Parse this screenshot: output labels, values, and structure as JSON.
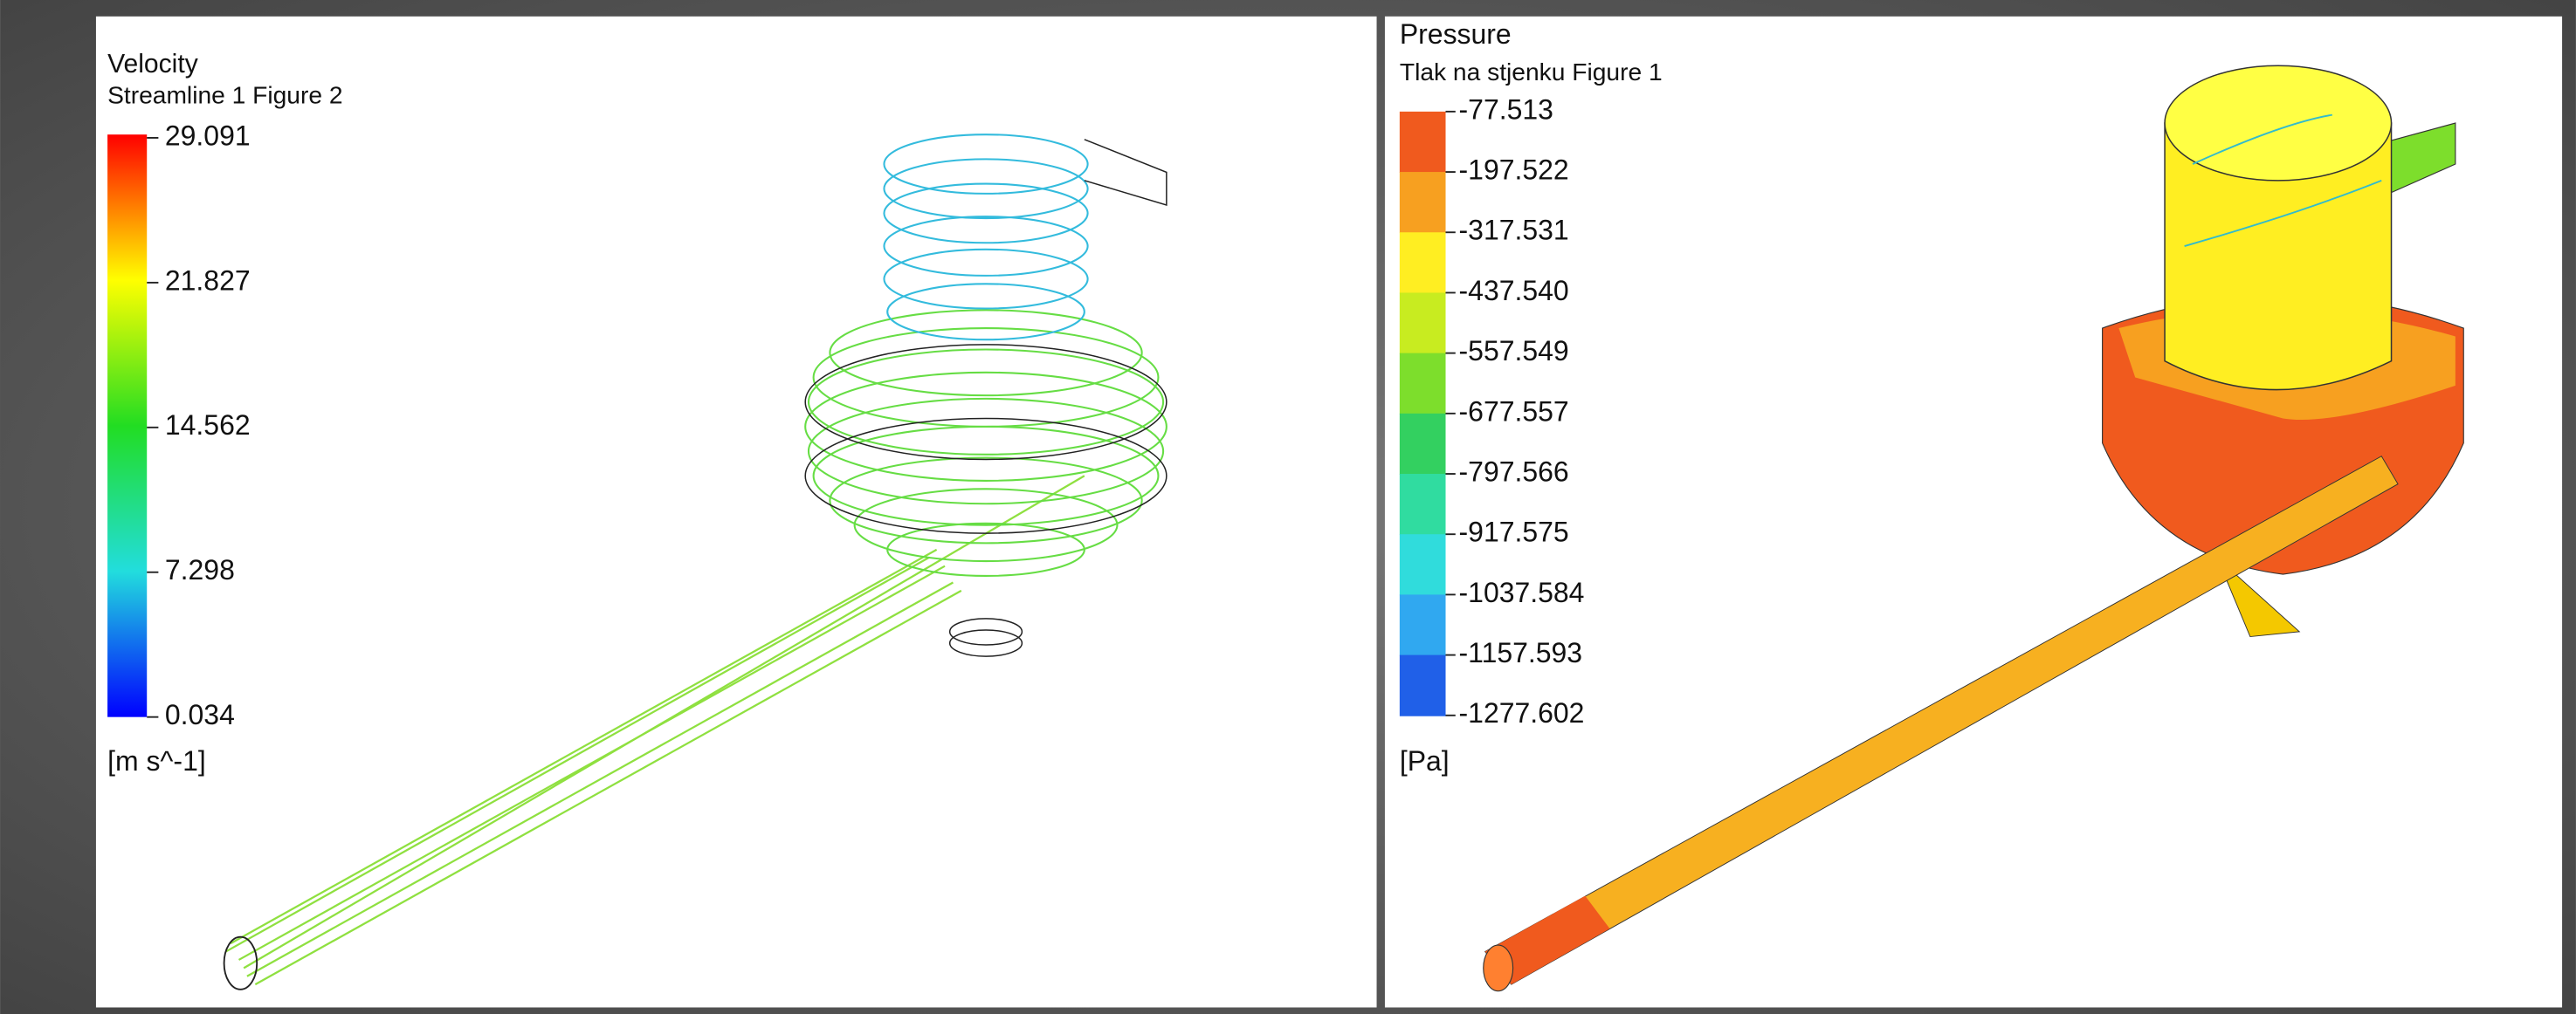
{
  "left_panel": {
    "title": "Velocity",
    "subtitle": "Streamline 1 Figure 2",
    "legend_labels": [
      "29.091",
      "21.827",
      "14.562",
      "7.298",
      "0.034"
    ],
    "unit": "[m s^-1]"
  },
  "right_panel": {
    "title": "Pressure",
    "subtitle": "Tlak na stjenku Figure 1",
    "legend_labels": [
      "-77.513",
      "-197.522",
      "-317.531",
      "-437.540",
      "-557.549",
      "-677.557",
      "-797.566",
      "-917.575",
      "-1037.584",
      "-1157.593",
      "-1277.602"
    ],
    "unit": "[Pa]"
  }
}
